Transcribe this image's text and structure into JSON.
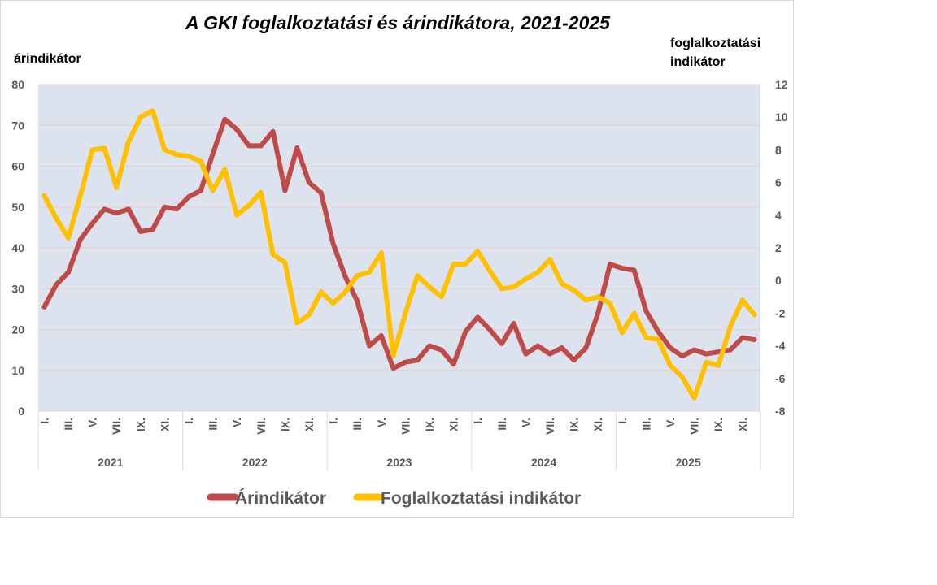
{
  "chart_data": {
    "type": "line",
    "title": "A GKI foglalkoztatási és árindikátora, 2021-2025",
    "y_left_label": "árindikátor",
    "y_right_label_lines": [
      "foglalkoztatási",
      "indikátor"
    ],
    "y_left": {
      "min": 0,
      "max": 80,
      "ticks": [
        "0",
        "10",
        "20",
        "30",
        "40",
        "50",
        "60",
        "70",
        "80"
      ]
    },
    "y_right": {
      "min": -8,
      "max": 12,
      "ticks": [
        "-8",
        "-6",
        "-4",
        "-2",
        "0",
        "2",
        "4",
        "6",
        "8",
        "10",
        "12"
      ]
    },
    "month_labels": [
      "I.",
      "III.",
      "V.",
      "VII.",
      "IX.",
      "XI."
    ],
    "years": [
      "2021",
      "2022",
      "2023",
      "2024",
      "2025"
    ],
    "background_color": "#dce3ef",
    "series": [
      {
        "name": "Árindikátor",
        "axis": "left",
        "color": "#be4b48",
        "values": [
          25.5,
          31,
          34,
          42,
          46,
          49.5,
          48.5,
          49.5,
          44,
          44.5,
          50,
          49.5,
          52.5,
          54,
          63,
          71.5,
          69,
          65,
          65,
          68.5,
          54,
          64.5,
          56,
          53.5,
          41,
          33,
          27,
          16,
          18.5,
          10.5,
          12,
          12.5,
          16,
          15,
          11.5,
          19.5,
          23,
          20,
          16.5,
          21.5,
          14,
          16,
          14,
          15.5,
          12.5,
          15.5,
          24,
          36,
          35,
          34.5,
          24.5,
          19.5,
          15.5,
          13.5,
          15,
          14,
          14.5,
          15,
          18,
          17.5
        ]
      },
      {
        "name": "Foglalkoztatási indikátor",
        "axis": "right",
        "color": "#ffc000",
        "values": [
          5.2,
          3.8,
          2.6,
          5.2,
          8,
          8.1,
          5.7,
          8.5,
          10,
          10.4,
          8,
          7.7,
          7.6,
          7.3,
          5.5,
          6.8,
          4,
          4.6,
          5.4,
          1.6,
          1.1,
          -2.6,
          -2.1,
          -0.7,
          -1.4,
          -0.7,
          0.3,
          0.5,
          1.7,
          -4.6,
          -2,
          0.3,
          -0.4,
          -1,
          1,
          1,
          1.8,
          0.6,
          -0.5,
          -0.4,
          0.1,
          0.5,
          1.3,
          -0.2,
          -0.6,
          -1.2,
          -1,
          -1.4,
          -3.2,
          -2,
          -3.5,
          -3.6,
          -5.2,
          -5.9,
          -7.2,
          -5,
          -5.2,
          -2.8,
          -1.2,
          -2.1
        ]
      }
    ],
    "legend_position": "bottom"
  }
}
